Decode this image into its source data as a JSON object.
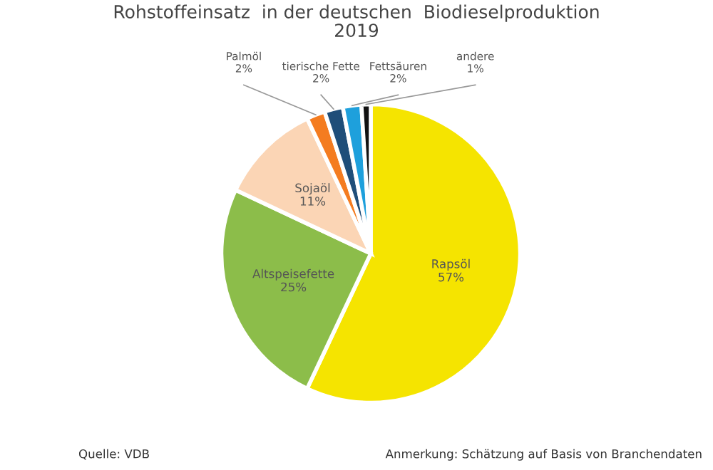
{
  "chart_data": {
    "type": "pie",
    "title": "Rohstoffeinsatz  in der deutschen  Biodieselproduktion\n2019",
    "categories": [
      "Rapsöl",
      "Altspeisefette",
      "Sojaöl",
      "Palmöl",
      "tierische Fette",
      "Fettsäuren",
      "andere"
    ],
    "values": [
      57,
      25,
      11,
      2,
      2,
      2,
      1
    ],
    "colors": [
      "#f5e400",
      "#8cbd4a",
      "#fbd5b5",
      "#f47c20",
      "#1f4e79",
      "#1ea0dc",
      "#111111"
    ],
    "value_labels": [
      "57%",
      "25%",
      "11%",
      "2%",
      "2%",
      "2%",
      "1%"
    ],
    "annotations": [
      "Quelle: VDB",
      "Anmerkung: Schätzung auf Basis von Branchendaten"
    ]
  }
}
